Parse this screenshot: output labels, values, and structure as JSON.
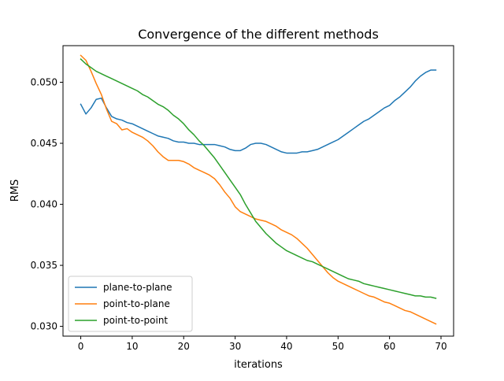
{
  "chart_data": {
    "type": "line",
    "title": "Convergence of the different methods",
    "xlabel": "iterations",
    "ylabel": "RMS",
    "xlim": [
      -3.45,
      72.45
    ],
    "ylim": [
      0.0292,
      0.053
    ],
    "xticks": [
      0,
      10,
      20,
      30,
      40,
      50,
      60,
      70
    ],
    "xtick_labels": [
      "0",
      "10",
      "20",
      "30",
      "40",
      "50",
      "60",
      "70"
    ],
    "yticks": [
      0.03,
      0.035,
      0.04,
      0.045,
      0.05
    ],
    "ytick_labels": [
      "0.030",
      "0.035",
      "0.040",
      "0.045",
      "0.050"
    ],
    "grid": false,
    "legend": "lower-left",
    "x": [
      0,
      1,
      2,
      3,
      4,
      5,
      6,
      7,
      8,
      9,
      10,
      11,
      12,
      13,
      14,
      15,
      16,
      17,
      18,
      19,
      20,
      21,
      22,
      23,
      24,
      25,
      26,
      27,
      28,
      29,
      30,
      31,
      32,
      33,
      34,
      35,
      36,
      37,
      38,
      39,
      40,
      41,
      42,
      43,
      44,
      45,
      46,
      47,
      48,
      49,
      50,
      51,
      52,
      53,
      54,
      55,
      56,
      57,
      58,
      59,
      60,
      61,
      62,
      63,
      64,
      65,
      66,
      67,
      68,
      69
    ],
    "series": [
      {
        "name": "plane-to-plane",
        "color": "#1f77b4",
        "values": [
          0.0482,
          0.0474,
          0.0479,
          0.0486,
          0.0487,
          0.0479,
          0.0472,
          0.047,
          0.0469,
          0.0467,
          0.0466,
          0.0464,
          0.0462,
          0.046,
          0.0458,
          0.0456,
          0.0455,
          0.0454,
          0.0452,
          0.0451,
          0.0451,
          0.045,
          0.045,
          0.0449,
          0.0449,
          0.0449,
          0.0449,
          0.0448,
          0.0447,
          0.0445,
          0.0444,
          0.0444,
          0.0446,
          0.0449,
          0.045,
          0.045,
          0.0449,
          0.0447,
          0.0445,
          0.0443,
          0.0442,
          0.0442,
          0.0442,
          0.0443,
          0.0443,
          0.0444,
          0.0445,
          0.0447,
          0.0449,
          0.0451,
          0.0453,
          0.0456,
          0.0459,
          0.0462,
          0.0465,
          0.0468,
          0.047,
          0.0473,
          0.0476,
          0.0479,
          0.0481,
          0.0485,
          0.0488,
          0.0492,
          0.0496,
          0.0501,
          0.0505,
          0.0508,
          0.051,
          0.051
        ]
      },
      {
        "name": "point-to-plane",
        "color": "#ff7f0e",
        "values": [
          0.0522,
          0.0518,
          0.0509,
          0.0499,
          0.049,
          0.0478,
          0.0468,
          0.0466,
          0.0461,
          0.0462,
          0.0459,
          0.0457,
          0.0455,
          0.0452,
          0.0448,
          0.0443,
          0.0439,
          0.0436,
          0.0436,
          0.0436,
          0.0435,
          0.0433,
          0.043,
          0.0428,
          0.0426,
          0.0424,
          0.0421,
          0.0416,
          0.041,
          0.0405,
          0.0398,
          0.0394,
          0.0392,
          0.039,
          0.0388,
          0.0387,
          0.0386,
          0.0384,
          0.0382,
          0.0379,
          0.0377,
          0.0375,
          0.0372,
          0.0368,
          0.0364,
          0.0359,
          0.0354,
          0.0349,
          0.0344,
          0.034,
          0.0337,
          0.0335,
          0.0333,
          0.0331,
          0.0329,
          0.0327,
          0.0325,
          0.0324,
          0.0322,
          0.032,
          0.0319,
          0.0317,
          0.0315,
          0.0313,
          0.0312,
          0.031,
          0.0308,
          0.0306,
          0.0304,
          0.0302
        ]
      },
      {
        "name": "point-to-point",
        "color": "#2ca02c",
        "values": [
          0.0519,
          0.0515,
          0.0512,
          0.0509,
          0.0507,
          0.0505,
          0.0503,
          0.0501,
          0.0499,
          0.0497,
          0.0495,
          0.0493,
          0.049,
          0.0488,
          0.0485,
          0.0482,
          0.048,
          0.0477,
          0.0473,
          0.047,
          0.0466,
          0.0461,
          0.0457,
          0.0452,
          0.0448,
          0.0443,
          0.0438,
          0.0432,
          0.0426,
          0.042,
          0.0414,
          0.0408,
          0.04,
          0.0393,
          0.0386,
          0.0381,
          0.0376,
          0.0372,
          0.0368,
          0.0365,
          0.0362,
          0.036,
          0.0358,
          0.0356,
          0.0354,
          0.0353,
          0.0351,
          0.0349,
          0.0347,
          0.0345,
          0.0343,
          0.0341,
          0.0339,
          0.0338,
          0.0337,
          0.0335,
          0.0334,
          0.0333,
          0.0332,
          0.0331,
          0.033,
          0.0329,
          0.0328,
          0.0327,
          0.0326,
          0.0325,
          0.0325,
          0.0324,
          0.0324,
          0.0323
        ]
      }
    ]
  }
}
